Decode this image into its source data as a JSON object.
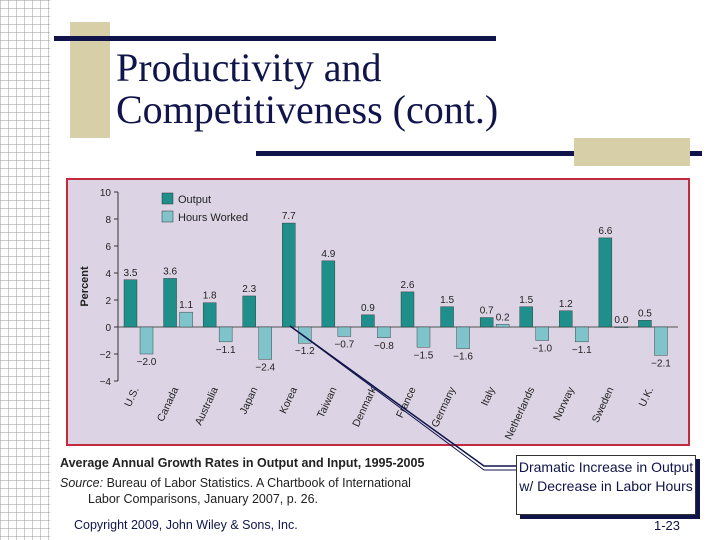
{
  "slide": {
    "title_line1": "Productivity and",
    "title_line2": "Competitiveness (cont.)",
    "caption_title": "Average Annual Growth Rates in Output and Input, 1995-2005",
    "source_label": "Source:",
    "source_text": " Bureau of Labor Statistics.  A Chartbook of International",
    "source_text2": "Labor Comparisons, January 2007, p. 26.",
    "copyright": "Copyright 2009, John Wiley & Sons, Inc.",
    "callout": "Dramatic Increase in Output w/ Decrease in Labor Hours",
    "page_number": "1-23"
  },
  "colors": {
    "navy": "#10144a",
    "tan": "#d6cfa8",
    "output": "#1e8f8a",
    "hours": "#7fc3cb",
    "chart_bg": "#dcd4e4",
    "chart_border": "#c42a3e"
  },
  "chart_data": {
    "type": "bar",
    "ylabel": "Percent",
    "ylim": [
      -4,
      10
    ],
    "yticks": [
      "10",
      "8",
      "6",
      "4",
      "2",
      "0",
      "−2",
      "−4"
    ],
    "ytick_values": [
      10,
      8,
      6,
      4,
      2,
      0,
      -2,
      -4
    ],
    "legend": [
      "Output",
      "Hours Worked"
    ],
    "categories": [
      "U.S.",
      "Canada",
      "Australia",
      "Japan",
      "Korea",
      "Taiwan",
      "Denmark",
      "France",
      "Germany",
      "Italy",
      "Netherlands",
      "Norway",
      "Sweden",
      "U.K."
    ],
    "series": [
      {
        "name": "Output",
        "values": [
          3.5,
          3.6,
          1.8,
          2.3,
          7.7,
          4.9,
          0.9,
          2.6,
          1.5,
          0.7,
          1.5,
          1.2,
          6.6,
          0.5
        ],
        "labels": [
          "3.5",
          "3.6",
          "1.8",
          "2.3",
          "7.7",
          "4.9",
          "0.9",
          "2.6",
          "1.5",
          "0.7",
          "1.5",
          "1.2",
          "6.6",
          "0.5"
        ]
      },
      {
        "name": "Hours Worked",
        "values": [
          -2.0,
          1.1,
          -1.1,
          -2.4,
          -1.2,
          -0.7,
          -0.8,
          -1.5,
          -1.6,
          0.2,
          -1.0,
          -1.1,
          0.0,
          -2.1
        ],
        "labels": [
          "−2.0",
          "1.1",
          "−1.1",
          "−2.4",
          "−1.2",
          "−0.7",
          "−0.8",
          "−1.5",
          "−1.6",
          "0.2",
          "−1.0",
          "−1.1",
          "0.0",
          "−2.1"
        ]
      }
    ]
  }
}
